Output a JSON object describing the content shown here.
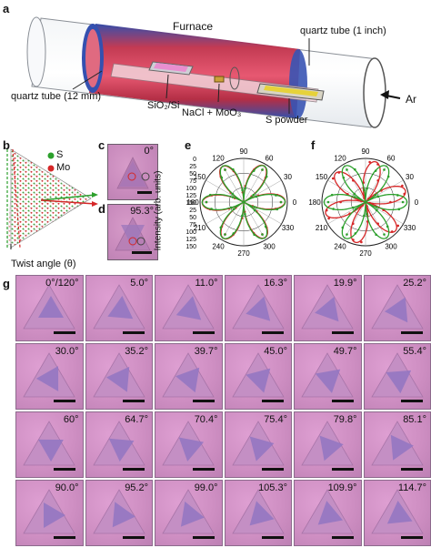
{
  "panel_a": {
    "label": "a",
    "furnace": "Furnace",
    "quartz_1inch": "quartz tube (1 inch)",
    "quartz_12mm": "quartz tube (12 mm)",
    "substrate": "SiO₂/Si",
    "precursor": "NaCl + MoO₃",
    "s_powder": "S powder",
    "gas": "Ar"
  },
  "panel_b": {
    "label": "b",
    "legend_s": "S",
    "legend_mo": "Mo",
    "twist": "Twist angle (θ)",
    "colors": {
      "s": "#2ca02c",
      "mo": "#d62728"
    }
  },
  "panel_c": {
    "label": "c",
    "angle": "0°"
  },
  "panel_d": {
    "label": "d",
    "angle": "95.3°"
  },
  "panel_e": {
    "label": "e",
    "ylabel": "Intensity (arb. units)",
    "r_ticks_top": [
      "0",
      "25",
      "50",
      "75",
      "100",
      "125",
      "150"
    ],
    "r_ticks_bottom": [
      "0",
      "25",
      "50",
      "75",
      "100",
      "125",
      "150"
    ],
    "angle_labels": [
      "90",
      "120",
      "60",
      "150",
      "30",
      "180",
      "0",
      "210",
      "330",
      "240",
      "300",
      "270"
    ]
  },
  "panel_f": {
    "label": "f",
    "angle_labels": [
      "90",
      "120",
      "60",
      "150",
      "30",
      "180",
      "0",
      "210",
      "330",
      "240",
      "300",
      "270"
    ]
  },
  "panel_g": {
    "label": "g",
    "angles": [
      "0°/120°",
      "5.0°",
      "11.0°",
      "16.3°",
      "19.9°",
      "25.2°",
      "30.0°",
      "35.2°",
      "39.7°",
      "45.0°",
      "49.7°",
      "55.4°",
      "60°",
      "64.7°",
      "70.4°",
      "75.4°",
      "79.8°",
      "85.1°",
      "90.0°",
      "95.2°",
      "99.0°",
      "105.3°",
      "109.9°",
      "114.7°"
    ]
  }
}
